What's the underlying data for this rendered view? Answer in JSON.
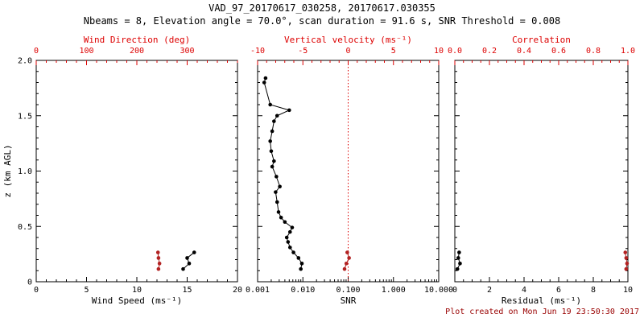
{
  "header": {
    "title": "VAD_97_20170617_030258, 20170617.030355",
    "subtitle": "Nbeams = 8, Elevation angle = 70.0°, scan duration = 91.6 s, SNR Threshold = 0.008"
  },
  "footer": {
    "created": "Plot created on Mon Jun 19 23:50:30 2017"
  },
  "colors": {
    "axis_red": "#dd0000",
    "point_red": "#b22222",
    "black": "#000000",
    "footer_red": "#990000"
  },
  "chart_data": [
    {
      "type": "scatter",
      "name": "wind-speed-panel",
      "x_bottom": {
        "label": "Wind Speed (ms⁻¹)",
        "scale": "linear",
        "min": 0,
        "max": 20,
        "ticks": [
          0,
          5,
          10,
          15,
          20
        ],
        "tick_labels": [
          "0",
          "5",
          "10",
          "15",
          "20"
        ],
        "minor_step": 1,
        "color": "#000000"
      },
      "x_top": {
        "label": "Wind Direction (deg)",
        "scale": "linear",
        "min": 0,
        "max": 400,
        "ticks": [
          0,
          100,
          200,
          300
        ],
        "tick_labels": [
          "0",
          "100",
          "200",
          "300"
        ],
        "minor_step": 20,
        "color": "#dd0000"
      },
      "y": {
        "label": "z (km AGL)",
        "min": 0,
        "max": 2,
        "ticks": [
          0,
          0.5,
          1,
          1.5,
          2
        ],
        "tick_labels": [
          "0",
          "0.5",
          "1.0",
          "1.5",
          "2.0"
        ],
        "minor_step": 0.1
      },
      "ref_line": null,
      "series": [
        {
          "name": "wind-speed",
          "axis": "bottom",
          "color": "#000000",
          "points": [
            [
              14.6,
              0.115
            ],
            [
              15.2,
              0.165
            ],
            [
              15.0,
              0.215
            ],
            [
              15.7,
              0.265
            ]
          ]
        },
        {
          "name": "wind-direction",
          "axis": "top",
          "color": "#b22222",
          "points": [
            [
              243,
              0.115
            ],
            [
              245,
              0.165
            ],
            [
              243,
              0.215
            ],
            [
              242,
              0.265
            ]
          ]
        }
      ]
    },
    {
      "type": "scatter",
      "name": "snr-panel",
      "x_bottom": {
        "label": "SNR",
        "scale": "log",
        "min": 0.001,
        "max": 10,
        "ticks": [
          0.001,
          0.01,
          0.1,
          1,
          10
        ],
        "tick_labels": [
          "0.001",
          "0.010",
          "0.100",
          "1.000",
          "10.000"
        ],
        "color": "#000000"
      },
      "x_top": {
        "label": "Vertical velocity (ms⁻¹)",
        "scale": "linear",
        "min": -10,
        "max": 10,
        "ticks": [
          -10,
          -5,
          0,
          5,
          10
        ],
        "tick_labels": [
          "-10",
          "-5",
          "0",
          "5",
          "10"
        ],
        "minor_step": 1,
        "color": "#dd0000"
      },
      "y": {
        "label": null,
        "min": 0,
        "max": 2,
        "ticks": [
          0,
          0.5,
          1,
          1.5,
          2
        ],
        "tick_labels": null,
        "minor_step": 0.1
      },
      "ref_line": {
        "axis": "bottom",
        "value": 0.1,
        "color": "#dd0000",
        "style": "dotted"
      },
      "series": [
        {
          "name": "snr",
          "axis": "bottom",
          "color": "#000000",
          "points": [
            [
              0.009,
              0.115
            ],
            [
              0.0095,
              0.165
            ],
            [
              0.008,
              0.215
            ],
            [
              0.0062,
              0.265
            ],
            [
              0.0052,
              0.31
            ],
            [
              0.0047,
              0.36
            ],
            [
              0.0044,
              0.4
            ],
            [
              0.0052,
              0.45
            ],
            [
              0.0058,
              0.49
            ],
            [
              0.004,
              0.54
            ],
            [
              0.0033,
              0.58
            ],
            [
              0.0029,
              0.63
            ],
            [
              0.0027,
              0.72
            ],
            [
              0.0025,
              0.81
            ],
            [
              0.0031,
              0.86
            ],
            [
              0.0026,
              0.95
            ],
            [
              0.0021,
              1.04
            ],
            [
              0.0023,
              1.09
            ],
            [
              0.002,
              1.18
            ],
            [
              0.0019,
              1.27
            ],
            [
              0.0021,
              1.36
            ],
            [
              0.0023,
              1.45
            ],
            [
              0.0027,
              1.5
            ],
            [
              0.005,
              1.55
            ],
            [
              0.0019,
              1.6
            ],
            [
              0.0014,
              1.8
            ],
            [
              0.0015,
              1.84
            ]
          ]
        },
        {
          "name": "vertical-velocity",
          "axis": "top",
          "color": "#b22222",
          "points": [
            [
              -0.4,
              0.115
            ],
            [
              -0.2,
              0.165
            ],
            [
              0.1,
              0.215
            ],
            [
              -0.1,
              0.265
            ]
          ]
        }
      ]
    },
    {
      "type": "scatter",
      "name": "residual-panel",
      "x_bottom": {
        "label": "Residual (ms⁻¹)",
        "scale": "linear",
        "min": 0,
        "max": 10,
        "ticks": [
          0,
          2,
          4,
          6,
          8,
          10
        ],
        "tick_labels": [
          "0",
          "2",
          "4",
          "6",
          "8",
          "10"
        ],
        "minor_step": 0.5,
        "color": "#000000"
      },
      "x_top": {
        "label": "Correlation",
        "scale": "linear",
        "min": 0,
        "max": 1,
        "ticks": [
          0,
          0.2,
          0.4,
          0.6,
          0.8,
          1
        ],
        "tick_labels": [
          "0.0",
          "0.2",
          "0.4",
          "0.6",
          "0.8",
          "1.0"
        ],
        "minor_step": 0.05,
        "color": "#dd0000"
      },
      "y": {
        "label": null,
        "min": 0,
        "max": 2,
        "ticks": [
          0,
          0.5,
          1,
          1.5,
          2
        ],
        "tick_labels": null,
        "minor_step": 0.1
      },
      "ref_line": null,
      "series": [
        {
          "name": "residual",
          "axis": "bottom",
          "color": "#000000",
          "points": [
            [
              0.15,
              0.115
            ],
            [
              0.3,
              0.165
            ],
            [
              0.2,
              0.215
            ],
            [
              0.25,
              0.265
            ]
          ]
        },
        {
          "name": "correlation",
          "axis": "top",
          "color": "#b22222",
          "points": [
            [
              0.99,
              0.115
            ],
            [
              0.995,
              0.165
            ],
            [
              0.99,
              0.215
            ],
            [
              0.985,
              0.265
            ]
          ]
        }
      ]
    }
  ]
}
